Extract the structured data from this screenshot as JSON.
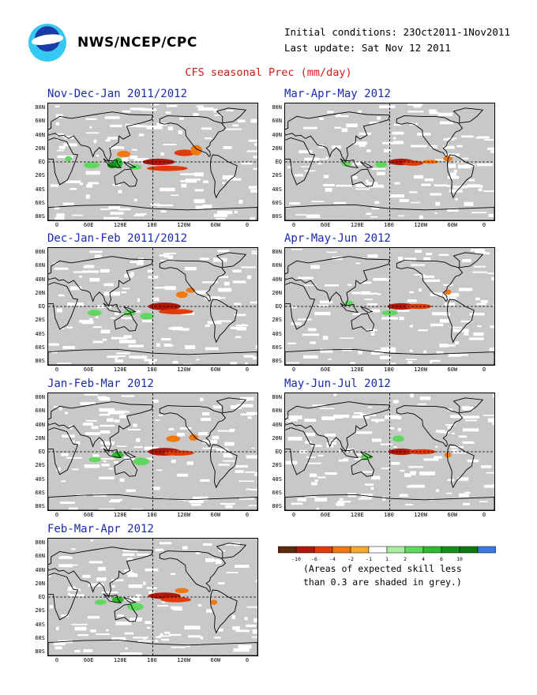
{
  "header": {
    "agency": "NWS/NCEP/CPC",
    "initial_conditions": "Initial conditions: 23Oct2011-1Nov2011",
    "last_update": "Last update: Sat Nov 12 2011",
    "title": "CFS seasonal Prec (mm/day)"
  },
  "lat_labels": [
    "80N",
    "60N",
    "40N",
    "20N",
    "EQ",
    "20S",
    "40S",
    "60S",
    "80S"
  ],
  "lon_labels": [
    "0",
    "60E",
    "120E",
    "180",
    "120W",
    "60W",
    "0"
  ],
  "panels": [
    {
      "title": "Nov-Dec-Jan 2011/2012"
    },
    {
      "title": "Mar-Apr-May 2012"
    },
    {
      "title": "Dec-Jan-Feb 2011/2012"
    },
    {
      "title": "Apr-May-Jun 2012"
    },
    {
      "title": "Jan-Feb-Mar 2012"
    },
    {
      "title": "May-Jun-Jul 2012"
    },
    {
      "title": "Feb-Mar-Apr 2012"
    }
  ],
  "legend": {
    "labels": [
      "-10",
      "-6",
      "-4",
      "-2",
      "-1",
      "1",
      "2",
      "4",
      "6",
      "10"
    ],
    "colors": [
      "#5a2a0c",
      "#b01808",
      "#e03a0a",
      "#f07810",
      "#f5a830",
      "#ffffff",
      "#a8f0a0",
      "#60d860",
      "#2eb830",
      "#12901a",
      "#0a7a10",
      "#3a7ae0"
    ],
    "note_line1": "(Areas of expected skill less",
    "note_line2": "than 0.3 are shaded in grey.)"
  },
  "colors": {
    "title_red": "#d21a1a",
    "panel_title_blue": "#1a2ab0",
    "skill_grey": "#c8c8c8"
  }
}
